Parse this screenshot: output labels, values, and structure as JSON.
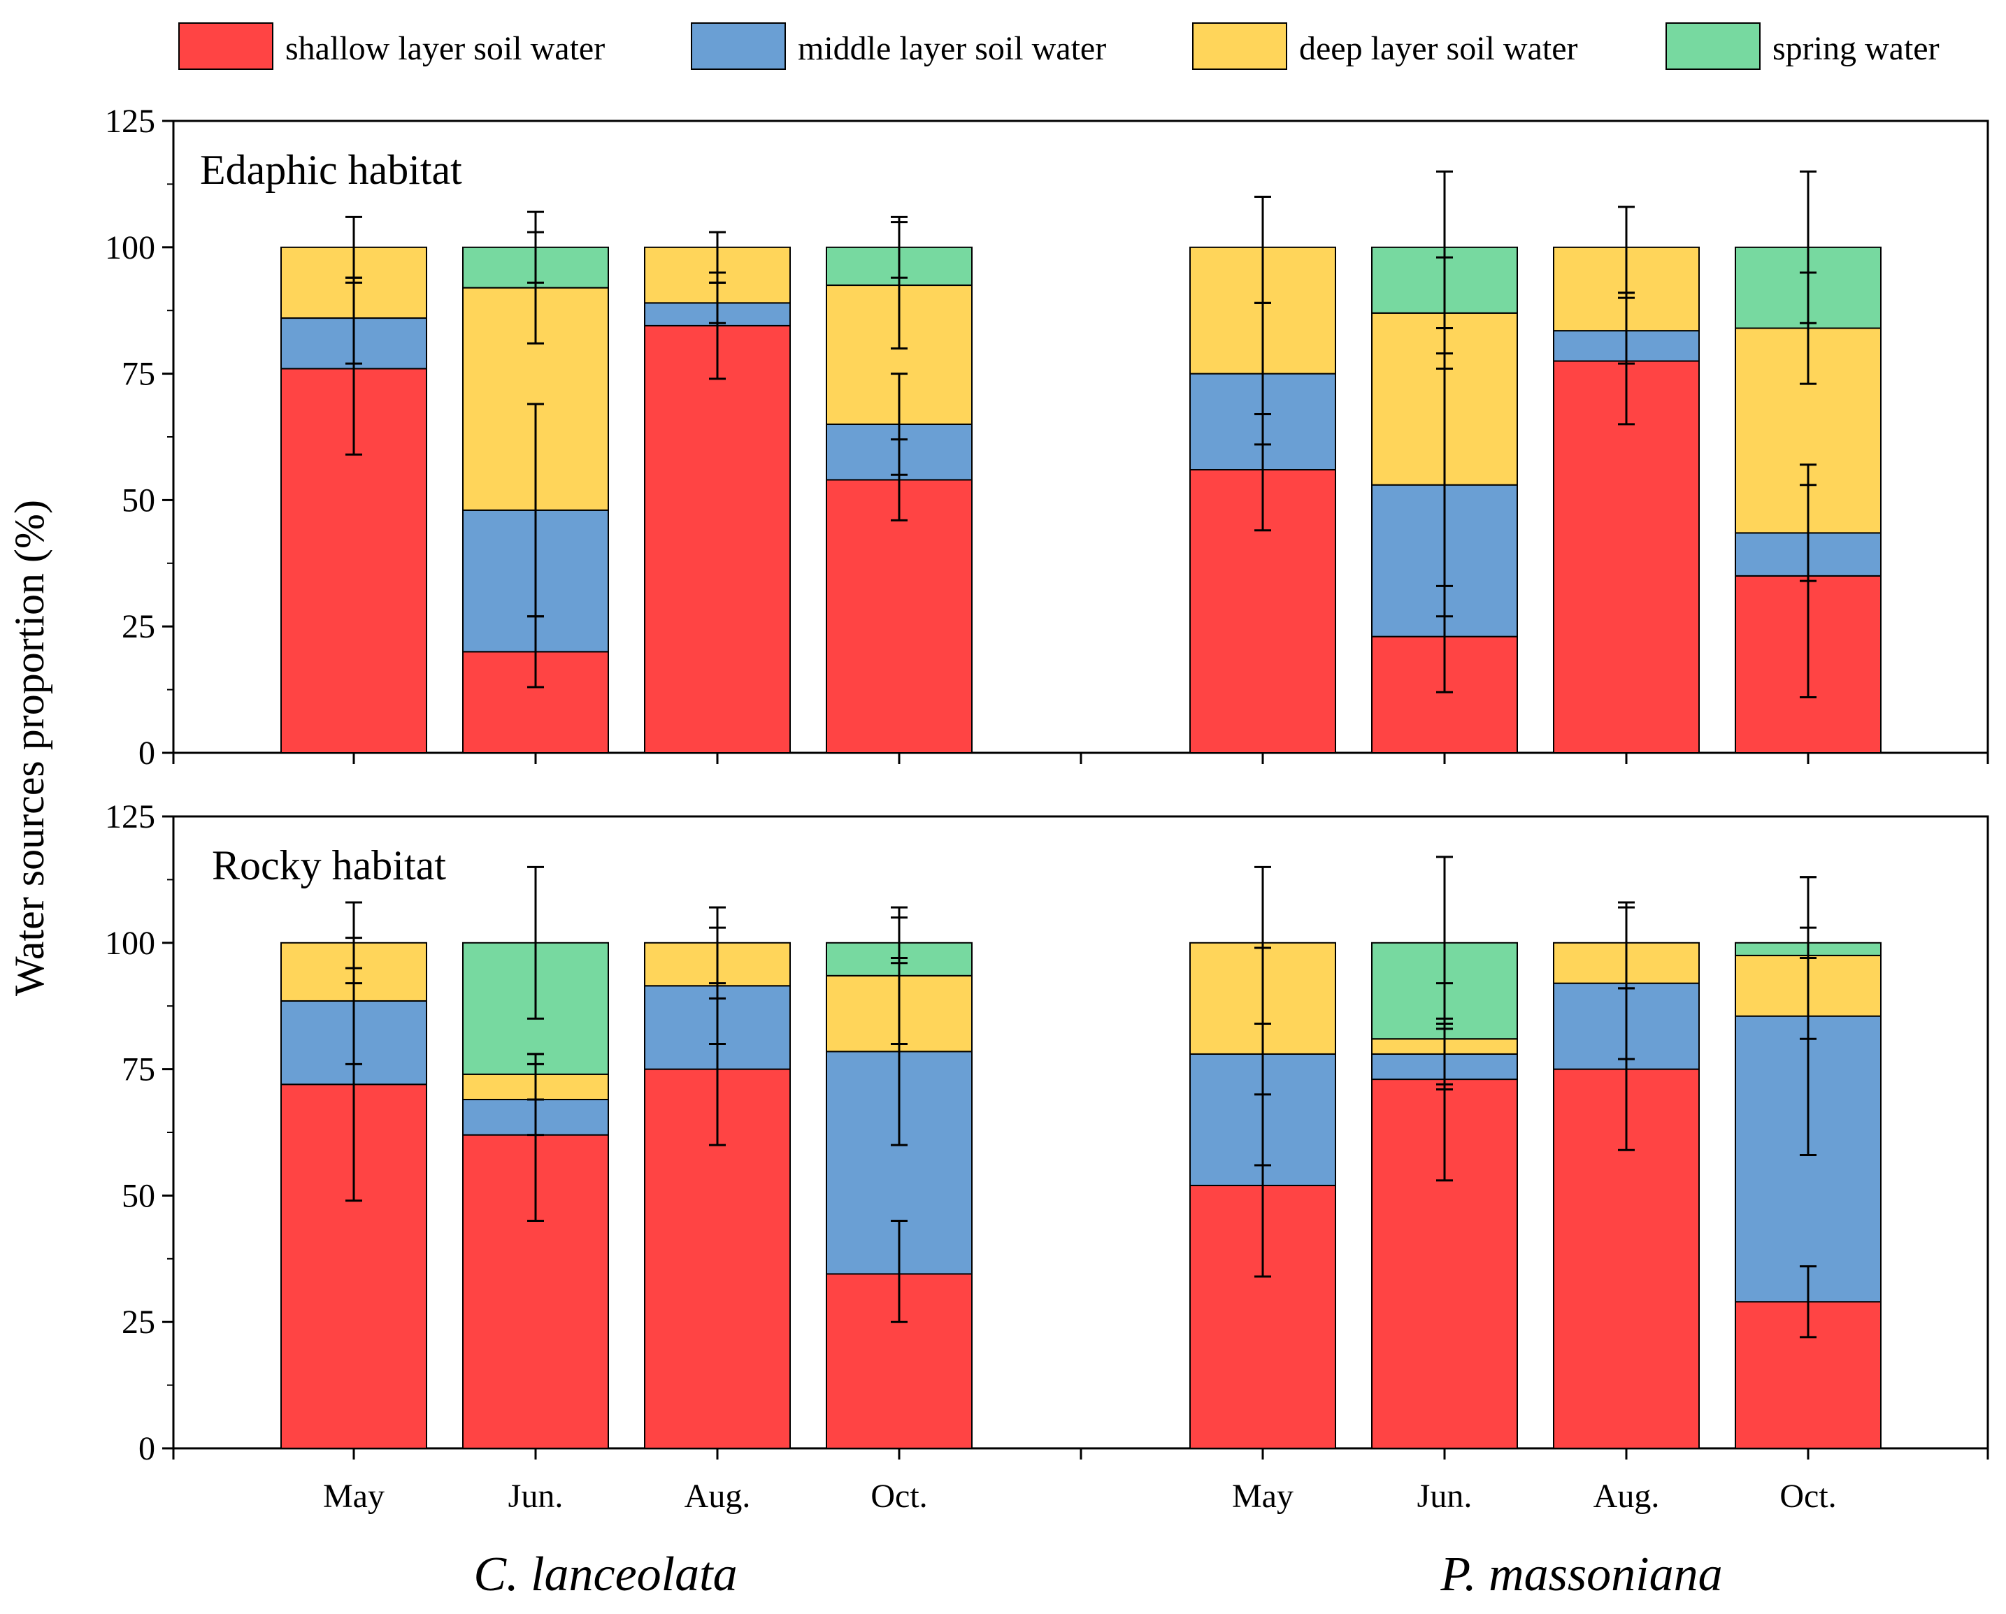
{
  "chart_data": {
    "type": "bar",
    "stacked": true,
    "ylabel": "Water sources proportion (%)",
    "ylim": [
      0,
      125
    ],
    "yticks": [
      0,
      25,
      50,
      75,
      100,
      125
    ],
    "months": [
      "May",
      "Jun.",
      "Aug.",
      "Oct."
    ],
    "species": [
      "C. lanceolata",
      "P. massoniana"
    ],
    "legend": {
      "position": "top",
      "entries": [
        {
          "name": "shallow layer soil water",
          "color": "#ff4444"
        },
        {
          "name": "middle layer soil water",
          "color": "#6a9fd4"
        },
        {
          "name": "deep layer soil water",
          "color": "#ffd55a"
        },
        {
          "name": "spring water",
          "color": "#77d9a0"
        }
      ]
    },
    "panels": [
      {
        "title": "Edaphic habitat",
        "groups": [
          {
            "species": "C. lanceolata",
            "bars": [
              {
                "month": "May",
                "values": [
                  76,
                  10,
                  14,
                  0
                ],
                "errors": [
                  [
                    59,
                    93
                  ],
                  [
                    77,
                    94
                  ],
                  [
                    94,
                    106
                  ],
                  null
                ]
              },
              {
                "month": "Jun.",
                "values": [
                  20,
                  28,
                  44,
                  8
                ],
                "errors": [
                  [
                    13,
                    27
                  ],
                  [
                    27,
                    69
                  ],
                  [
                    81,
                    103
                  ],
                  [
                    93,
                    107
                  ]
                ]
              },
              {
                "month": "Aug.",
                "values": [
                  84.5,
                  4.5,
                  11,
                  0
                ],
                "errors": [
                  [
                    74,
                    95
                  ],
                  [
                    85,
                    93
                  ],
                  [
                    93,
                    103
                  ],
                  null
                ]
              },
              {
                "month": "Oct.",
                "values": [
                  54,
                  11,
                  27.5,
                  7.5
                ],
                "errors": [
                  [
                    46,
                    62
                  ],
                  [
                    55,
                    75
                  ],
                  [
                    80,
                    105
                  ],
                  [
                    94,
                    106
                  ]
                ]
              }
            ]
          },
          {
            "species": "P. massoniana",
            "bars": [
              {
                "month": "May",
                "values": [
                  56,
                  19,
                  25,
                  0
                ],
                "errors": [
                  [
                    44,
                    67
                  ],
                  [
                    61,
                    89
                  ],
                  [
                    89,
                    110
                  ],
                  null
                ]
              },
              {
                "month": "Jun.",
                "values": [
                  23,
                  30,
                  34,
                  13
                ],
                "errors": [
                  [
                    12,
                    33
                  ],
                  [
                    27,
                    79
                  ],
                  [
                    76,
                    98
                  ],
                  [
                    84,
                    115
                  ]
                ]
              },
              {
                "month": "Aug.",
                "values": [
                  77.5,
                  6,
                  16.5,
                  0
                ],
                "errors": [
                  [
                    65,
                    90
                  ],
                  [
                    77,
                    91
                  ],
                  [
                    91,
                    108
                  ],
                  null
                ]
              },
              {
                "month": "Oct.",
                "values": [
                  35,
                  8.5,
                  40.5,
                  16
                ],
                "errors": [
                  [
                    11,
                    57
                  ],
                  [
                    34,
                    53
                  ],
                  [
                    73,
                    95
                  ],
                  [
                    85,
                    115
                  ]
                ]
              }
            ]
          }
        ]
      },
      {
        "title": "Rocky habitat",
        "groups": [
          {
            "species": "C. lanceolata",
            "bars": [
              {
                "month": "May",
                "values": [
                  72,
                  16.5,
                  11.5,
                  0
                ],
                "errors": [
                  [
                    49,
                    95
                  ],
                  [
                    76,
                    101
                  ],
                  [
                    92,
                    108
                  ],
                  null
                ]
              },
              {
                "month": "Jun.",
                "values": [
                  62,
                  7,
                  5,
                  26
                ],
                "errors": [
                  [
                    45,
                    78
                  ],
                  [
                    62,
                    76
                  ],
                  [
                    69,
                    78
                  ],
                  [
                    85,
                    115
                  ]
                ]
              },
              {
                "month": "Aug.",
                "values": [
                  75,
                  16.5,
                  8.5,
                  0
                ],
                "errors": [
                  [
                    60,
                    89
                  ],
                  [
                    80,
                    103
                  ],
                  [
                    92,
                    107
                  ],
                  null
                ]
              },
              {
                "month": "Oct.",
                "values": [
                  34.5,
                  44,
                  15,
                  6.5
                ],
                "errors": [
                  [
                    25,
                    45
                  ],
                  [
                    60,
                    97
                  ],
                  [
                    80,
                    105
                  ],
                  [
                    96,
                    107
                  ]
                ]
              }
            ]
          },
          {
            "species": "P. massoniana",
            "bars": [
              {
                "month": "May",
                "values": [
                  52,
                  26,
                  22,
                  0
                ],
                "errors": [
                  [
                    34,
                    70
                  ],
                  [
                    56,
                    99
                  ],
                  [
                    84,
                    115
                  ],
                  null
                ]
              },
              {
                "month": "Jun.",
                "values": [
                  73,
                  5,
                  3,
                  19
                ],
                "errors": [
                  [
                    53,
                    92
                  ],
                  [
                    72,
                    84
                  ],
                  [
                    71,
                    85
                  ],
                  [
                    83,
                    117
                  ]
                ]
              },
              {
                "month": "Aug.",
                "values": [
                  75,
                  17,
                  8,
                  0
                ],
                "errors": [
                  [
                    59,
                    91
                  ],
                  [
                    77,
                    107
                  ],
                  [
                    91,
                    108
                  ],
                  null
                ]
              },
              {
                "month": "Oct.",
                "values": [
                  29,
                  56.5,
                  12,
                  2.5
                ],
                "errors": [
                  [
                    22,
                    36
                  ],
                  [
                    58,
                    113
                  ],
                  [
                    81,
                    113
                  ],
                  [
                    97,
                    103
                  ]
                ]
              }
            ]
          }
        ]
      }
    ]
  }
}
